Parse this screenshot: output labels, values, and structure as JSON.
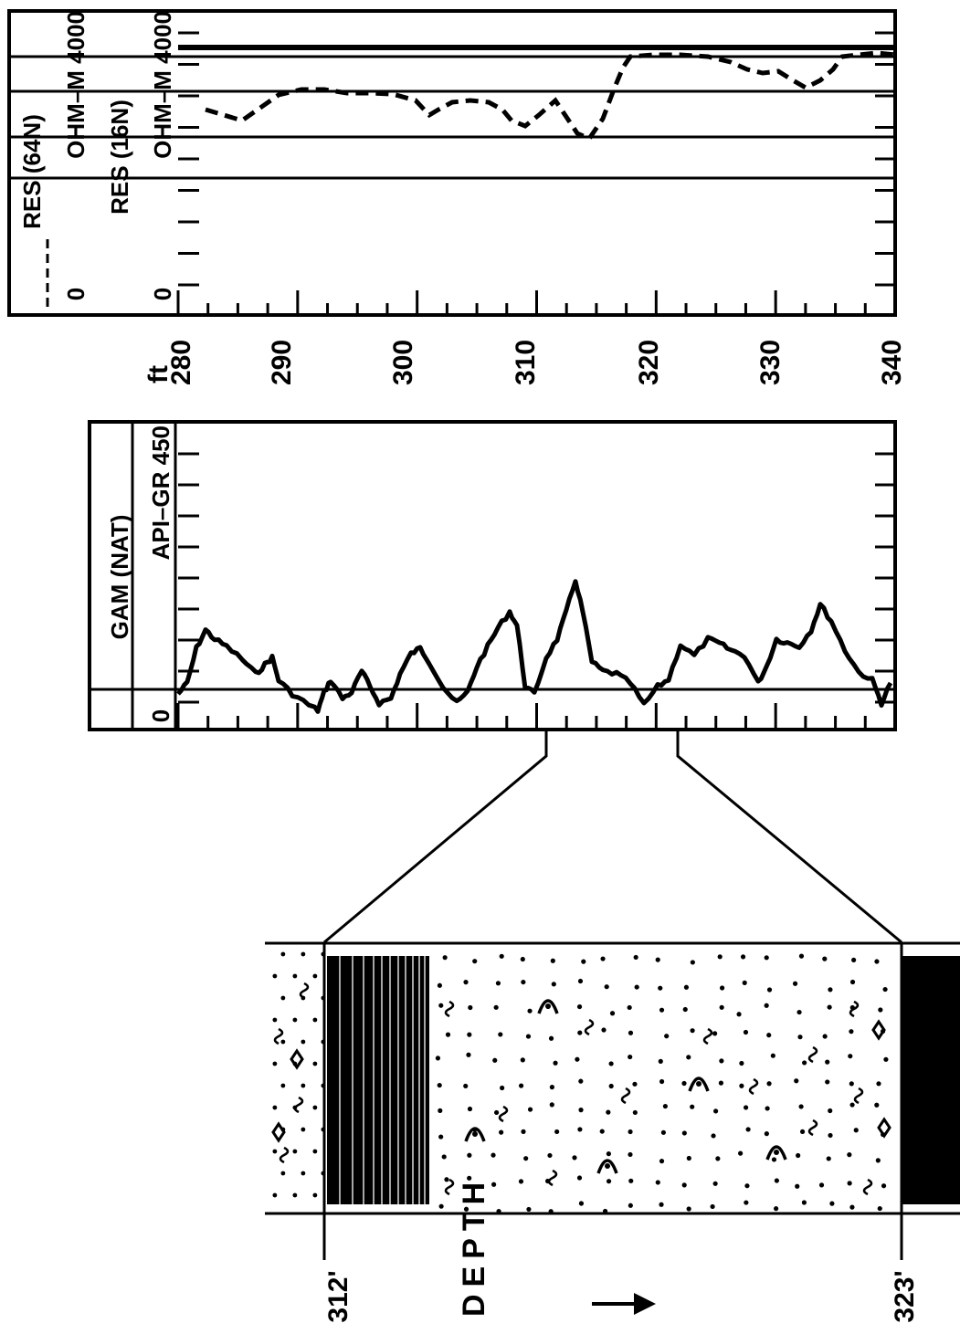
{
  "depth_axis": {
    "unit": "ft",
    "ticks": [
      "280",
      "290",
      "300",
      "310",
      "320",
      "330",
      "340"
    ]
  },
  "resistivity_track": {
    "curve1": {
      "name": "RES (64N)",
      "scale_min": "0",
      "scale_max": "OHM–M 4000"
    },
    "curve2": {
      "name": "RES (16N)",
      "scale_min": "0",
      "scale_max": "OHM–M 4000"
    }
  },
  "gamma_track": {
    "name": "GAM (NAT)",
    "scale_min": "0",
    "scale_max": "API–GR  450"
  },
  "core_section": {
    "top_depth": "312'",
    "bottom_depth": "323'",
    "depth_arrow_label": "DEPTH"
  },
  "colors": {
    "ink": "#000000",
    "paper": "#ffffff"
  }
}
